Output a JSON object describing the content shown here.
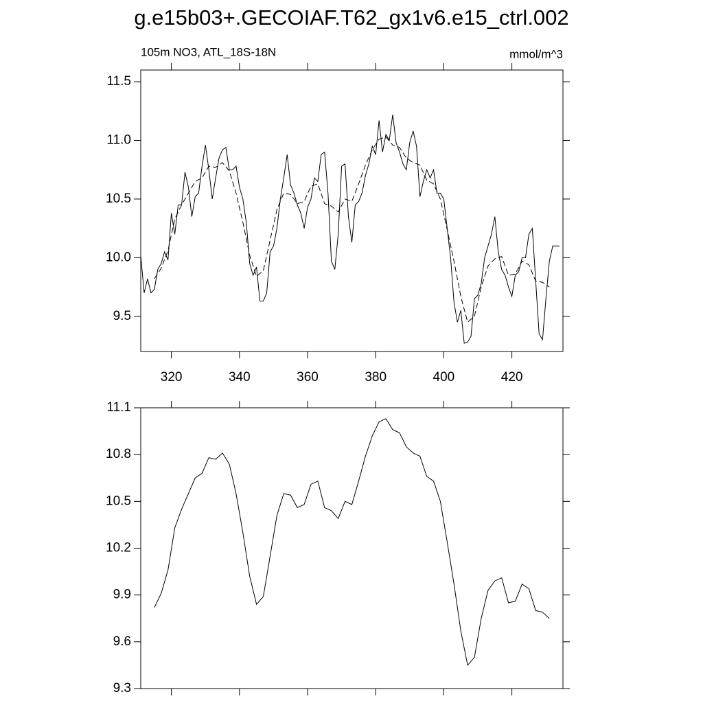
{
  "title": "g.e15b03+.GECOIAF.T62_gx1v6.e15_ctrl.002",
  "chart_data": [
    {
      "type": "line",
      "left_string": "105m NO3, ATL_18S-18N",
      "right_string": "mmol/m^3",
      "xlim": [
        311,
        435
      ],
      "ylim": [
        9.2,
        11.6
      ],
      "xticks": [
        320,
        340,
        360,
        380,
        400,
        420
      ],
      "xticklabels": true,
      "yticks": [
        {
          "value": 9.5,
          "label": "9.5"
        },
        {
          "value": 10,
          "label": "10.0"
        },
        {
          "value": 10.5,
          "label": "10.5"
        },
        {
          "value": 11,
          "label": "11.0"
        },
        {
          "value": 11.5,
          "label": "11.5"
        }
      ],
      "series": [
        {
          "color": "#000000",
          "dash": false,
          "x": [
            311,
            312,
            313,
            314,
            315,
            316,
            317,
            318,
            319,
            320,
            321,
            322,
            323,
            324,
            325,
            326,
            327,
            328,
            329,
            330,
            331,
            332,
            333,
            334,
            335,
            336,
            337,
            338,
            339,
            340,
            341,
            342,
            343,
            344,
            345,
            346,
            347,
            348,
            349,
            350,
            351,
            352,
            353,
            354,
            355,
            356,
            357,
            358,
            359,
            360,
            361,
            362,
            363,
            364,
            365,
            366,
            367,
            368,
            369,
            370,
            371,
            372,
            373,
            374,
            375,
            376,
            377,
            378,
            379,
            380,
            381,
            382,
            383,
            384,
            385,
            386,
            387,
            388,
            389,
            390,
            391,
            392,
            393,
            394,
            395,
            396,
            397,
            398,
            399,
            400,
            401,
            402,
            403,
            404,
            405,
            406,
            407,
            408,
            409,
            410,
            411,
            412,
            413,
            414,
            415,
            416,
            417,
            418,
            419,
            420,
            421,
            422,
            423,
            424,
            425,
            426,
            427,
            428,
            429,
            430,
            431,
            432,
            433,
            434
          ],
          "values": [
            10.02,
            9.7,
            9.82,
            9.7,
            9.73,
            9.9,
            9.95,
            10.05,
            9.98,
            10.38,
            10.2,
            10.45,
            10.45,
            10.73,
            10.6,
            10.35,
            10.52,
            10.55,
            10.78,
            10.96,
            10.75,
            10.5,
            10.68,
            10.85,
            10.92,
            10.94,
            10.75,
            10.75,
            10.78,
            10.6,
            10.5,
            10.3,
            9.95,
            9.85,
            9.92,
            9.63,
            9.63,
            9.7,
            10.05,
            10.1,
            10.25,
            10.5,
            10.68,
            10.88,
            10.62,
            10.55,
            10.45,
            10.38,
            10.25,
            10.43,
            10.5,
            10.68,
            10.65,
            10.88,
            10.9,
            10.55,
            9.97,
            9.9,
            10.2,
            10.78,
            10.8,
            10.35,
            10.13,
            10.45,
            10.48,
            10.55,
            10.7,
            10.8,
            10.95,
            10.88,
            11.17,
            10.9,
            11.05,
            11.0,
            11.22,
            10.98,
            10.9,
            10.8,
            10.75,
            10.98,
            11.08,
            10.95,
            10.52,
            10.65,
            10.75,
            10.68,
            10.75,
            10.55,
            10.55,
            10.5,
            10.25,
            10.0,
            9.62,
            9.45,
            9.55,
            9.27,
            9.28,
            9.33,
            9.65,
            9.68,
            9.78,
            10.0,
            10.1,
            10.2,
            10.35,
            10.05,
            9.9,
            9.85,
            9.75,
            9.67,
            9.85,
            9.88,
            10.0,
            10.0,
            10.2,
            10.25,
            9.8,
            9.35,
            9.3,
            9.65,
            9.97,
            10.1,
            10.1,
            10.1
          ]
        },
        {
          "color": "#000000",
          "dash": true,
          "x": [
            315,
            317,
            319,
            321,
            323,
            325,
            327,
            329,
            331,
            333,
            335,
            337,
            339,
            341,
            343,
            345,
            347,
            349,
            351,
            353,
            355,
            357,
            359,
            361,
            363,
            365,
            367,
            369,
            371,
            373,
            375,
            377,
            379,
            381,
            383,
            385,
            387,
            389,
            391,
            393,
            395,
            397,
            399,
            401,
            403,
            405,
            407,
            409,
            411,
            413,
            415,
            417,
            419,
            421,
            423,
            425,
            427,
            429,
            431
          ],
          "values": [
            9.82,
            9.91,
            10.06,
            10.33,
            10.45,
            10.55,
            10.65,
            10.68,
            10.78,
            10.77,
            10.81,
            10.74,
            10.55,
            10.3,
            10.02,
            9.84,
            9.89,
            10.15,
            10.41,
            10.55,
            10.54,
            10.46,
            10.48,
            10.61,
            10.63,
            10.46,
            10.44,
            10.39,
            10.5,
            10.48,
            10.63,
            10.79,
            10.92,
            11.01,
            11.03,
            10.96,
            10.94,
            10.85,
            10.81,
            10.79,
            10.66,
            10.63,
            10.5,
            10.24,
            9.97,
            9.67,
            9.45,
            9.5,
            9.75,
            9.93,
            9.99,
            10.01,
            9.85,
            9.86,
            9.97,
            9.94,
            9.8,
            9.79,
            9.75
          ]
        }
      ]
    },
    {
      "type": "line",
      "xlim": [
        311,
        435
      ],
      "ylim": [
        9.3,
        11.1
      ],
      "xticks": [
        320,
        340,
        360,
        380,
        400,
        420
      ],
      "xticklabels": false,
      "yticks": [
        {
          "value": 9.3,
          "label": "9.3"
        },
        {
          "value": 9.6,
          "label": "9.6"
        },
        {
          "value": 9.9,
          "label": "9.9"
        },
        {
          "value": 10.2,
          "label": "10.2"
        },
        {
          "value": 10.5,
          "label": "10.5"
        },
        {
          "value": 10.8,
          "label": "10.8"
        },
        {
          "value": 11.1,
          "label": "11.1"
        }
      ],
      "series": [
        {
          "color": "#000000",
          "dash": false,
          "x": [
            315,
            317,
            319,
            321,
            323,
            325,
            327,
            329,
            331,
            333,
            335,
            337,
            339,
            341,
            343,
            345,
            347,
            349,
            351,
            353,
            355,
            357,
            359,
            361,
            363,
            365,
            367,
            369,
            371,
            373,
            375,
            377,
            379,
            381,
            383,
            385,
            387,
            389,
            391,
            393,
            395,
            397,
            399,
            401,
            403,
            405,
            407,
            409,
            411,
            413,
            415,
            417,
            419,
            421,
            423,
            425,
            427,
            429,
            431
          ],
          "values": [
            9.82,
            9.91,
            10.06,
            10.33,
            10.45,
            10.55,
            10.65,
            10.68,
            10.78,
            10.77,
            10.81,
            10.74,
            10.55,
            10.3,
            10.02,
            9.84,
            9.89,
            10.15,
            10.41,
            10.55,
            10.54,
            10.46,
            10.48,
            10.61,
            10.63,
            10.46,
            10.44,
            10.39,
            10.5,
            10.48,
            10.63,
            10.79,
            10.92,
            11.01,
            11.03,
            10.96,
            10.94,
            10.85,
            10.81,
            10.79,
            10.66,
            10.63,
            10.5,
            10.24,
            9.97,
            9.67,
            9.45,
            9.5,
            9.75,
            9.93,
            9.99,
            10.01,
            9.85,
            9.86,
            9.97,
            9.94,
            9.8,
            9.79,
            9.75
          ]
        }
      ]
    }
  ]
}
